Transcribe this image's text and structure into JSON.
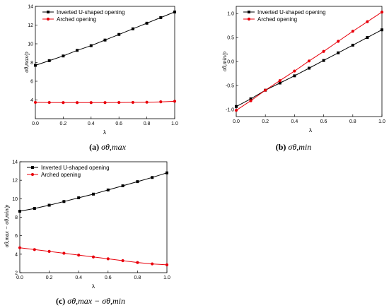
{
  "chart_data": [
    {
      "type": "line",
      "caption": {
        "letter": "(a)",
        "math": "σθ,max"
      },
      "xlabel": "λ",
      "ylabel": "σθ,max/p",
      "xlim": [
        0,
        1.0
      ],
      "ylim": [
        2,
        14
      ],
      "x_ticks": [
        "0.0",
        "0.2",
        "0.4",
        "0.6",
        "0.8",
        "1.0"
      ],
      "y_ticks": [
        "4",
        "6",
        "8",
        "10",
        "12",
        "14"
      ],
      "legend_position": "top-left",
      "x": [
        0,
        0.1,
        0.2,
        0.3,
        0.4,
        0.5,
        0.6,
        0.7,
        0.8,
        0.9,
        1.0
      ],
      "series": [
        {
          "name": "Inverted U-shaped opening",
          "color": "#000000",
          "marker": "square",
          "values": [
            7.7,
            8.2,
            8.7,
            9.3,
            9.8,
            10.4,
            11.0,
            11.6,
            12.2,
            12.8,
            13.4
          ]
        },
        {
          "name": "Arched opening",
          "color": "#e8000b",
          "marker": "circle",
          "values": [
            3.74,
            3.73,
            3.72,
            3.72,
            3.72,
            3.72,
            3.73,
            3.74,
            3.76,
            3.8,
            3.86
          ]
        }
      ]
    },
    {
      "type": "line",
      "caption": {
        "letter": "(b)",
        "math": "σθ,min"
      },
      "xlabel": "λ",
      "ylabel": "σθ,min/p",
      "xlim": [
        0,
        1.0
      ],
      "ylim": [
        -1.15,
        1.15
      ],
      "x_ticks": [
        "0.0",
        "0.2",
        "0.4",
        "0.6",
        "0.8",
        "1.0"
      ],
      "y_ticks": [
        "-1.0",
        "-0.5",
        "0.0",
        "0.5",
        "1.0"
      ],
      "legend_position": "top-left",
      "x": [
        0,
        0.1,
        0.2,
        0.3,
        0.4,
        0.5,
        0.6,
        0.7,
        0.8,
        0.9,
        1.0
      ],
      "series": [
        {
          "name": "Inverted U-shaped opening",
          "color": "#000000",
          "marker": "square",
          "values": [
            -0.94,
            -0.78,
            -0.6,
            -0.45,
            -0.3,
            -0.14,
            0.02,
            0.18,
            0.34,
            0.5,
            0.66
          ]
        },
        {
          "name": "Arched opening",
          "color": "#e8000b",
          "marker": "circle",
          "values": [
            -1.02,
            -0.82,
            -0.6,
            -0.4,
            -0.2,
            0.01,
            0.21,
            0.42,
            0.63,
            0.83,
            1.03
          ]
        }
      ]
    },
    {
      "type": "line",
      "caption": {
        "letter": "(c)",
        "math": "σθ,max − σθ,min"
      },
      "xlabel": "λ",
      "ylabel": "σθ,max − σθ,min/p",
      "xlim": [
        0,
        1.0
      ],
      "ylim": [
        2,
        14
      ],
      "x_ticks": [
        "0.0",
        "0.2",
        "0.4",
        "0.6",
        "0.8",
        "1.0"
      ],
      "y_ticks": [
        "2",
        "4",
        "6",
        "8",
        "10",
        "12",
        "14"
      ],
      "legend_position": "top-left",
      "x": [
        0,
        0.1,
        0.2,
        0.3,
        0.4,
        0.5,
        0.6,
        0.7,
        0.8,
        0.9,
        1.0
      ],
      "series": [
        {
          "name": "Inverted U-shaped opening",
          "color": "#000000",
          "marker": "square",
          "values": [
            8.65,
            8.95,
            9.3,
            9.7,
            10.1,
            10.5,
            10.95,
            11.4,
            11.85,
            12.3,
            12.8
          ]
        },
        {
          "name": "Arched opening",
          "color": "#e8000b",
          "marker": "circle",
          "values": [
            4.7,
            4.5,
            4.3,
            4.1,
            3.9,
            3.7,
            3.5,
            3.3,
            3.1,
            2.95,
            2.85
          ]
        }
      ]
    }
  ]
}
